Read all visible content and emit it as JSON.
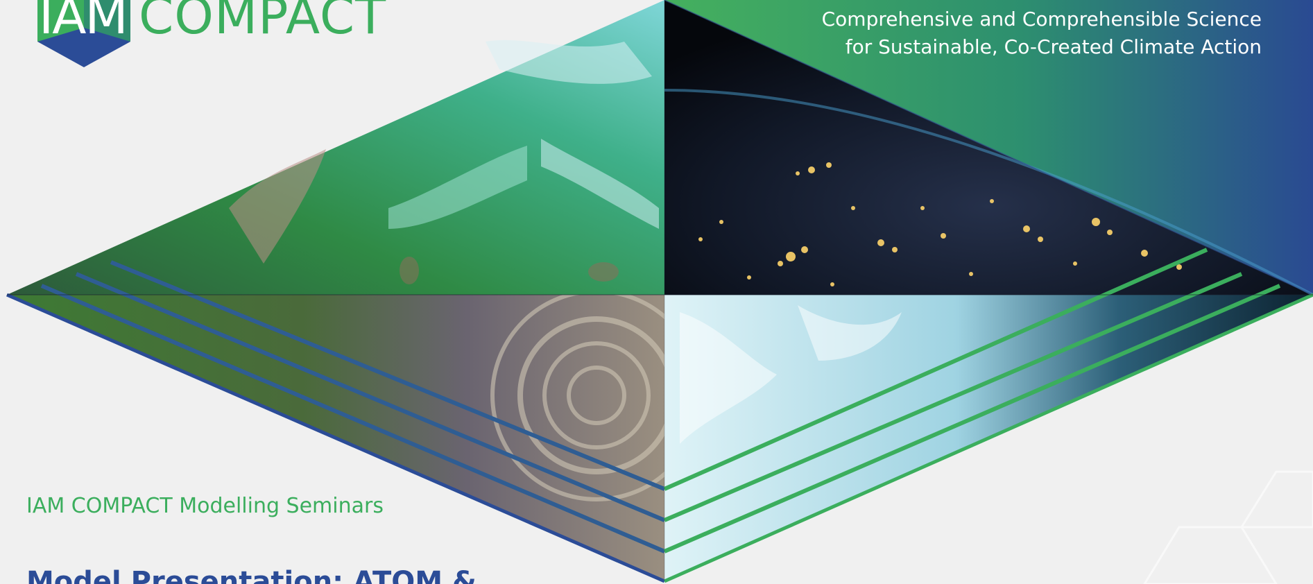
{
  "logo": {
    "word1": "IAM",
    "word2": "COMPACT"
  },
  "tagline": {
    "line1": "Comprehensive and Comprehensible Science",
    "line2": "for Sustainable, Co-Created Climate Action"
  },
  "series_label": "IAM COMPACT Modelling Seminars",
  "presentation_title": "Model Presentation: ATOM &",
  "colors": {
    "brand_green": "#3bae5d",
    "brand_blue": "#2b4c97",
    "background": "#f0f0f0"
  },
  "images": {
    "top_left": "satellite-coast-image",
    "top_right": "earth-night-lights-image",
    "bottom_left": "richat-structure-image",
    "bottom_right": "ice-sheet-image"
  }
}
